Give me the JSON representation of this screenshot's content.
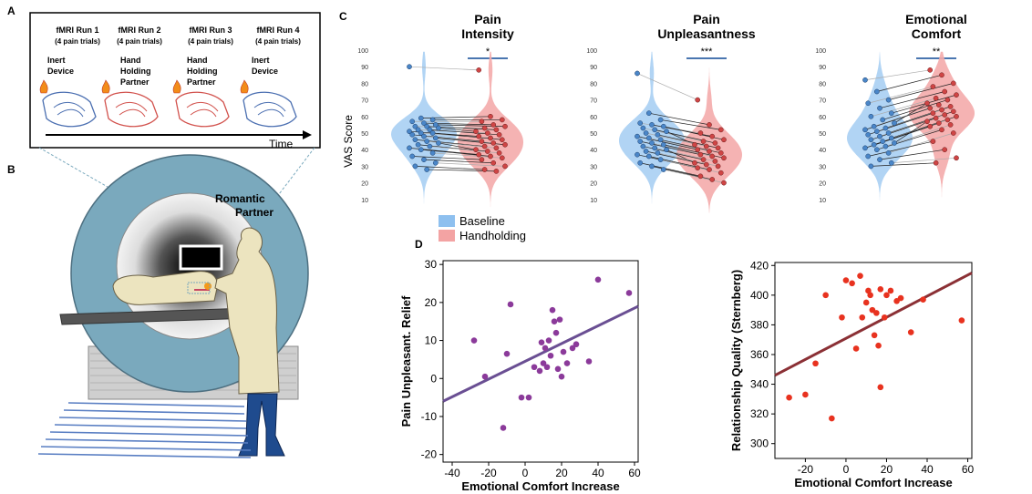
{
  "panel_a": {
    "letter": "A",
    "runs": [
      {
        "title": "fMRI Run 1",
        "sub": "(4 pain trials)",
        "cond": [
          "Inert",
          "Device"
        ]
      },
      {
        "title": "fMRI Run 2",
        "sub": "(4 pain trials)",
        "cond": [
          "Hand",
          "Holding",
          "Partner"
        ]
      },
      {
        "title": "fMRI Run 3",
        "sub": "(4 pain trials)",
        "cond": [
          "Hand",
          "Holding",
          "Partner"
        ]
      },
      {
        "title": "fMRI Run 4",
        "sub": "(4 pain trials)",
        "cond": [
          "Inert",
          "Device"
        ]
      }
    ],
    "time_label": "Time"
  },
  "panel_b": {
    "letter": "B",
    "partner_label": [
      "Romantic",
      "Partner"
    ]
  },
  "panel_c": {
    "letter": "C",
    "ylabel": "VAS Score",
    "legend": [
      {
        "label": "Baseline",
        "color": "#8ec0ef"
      },
      {
        "label": "Handholding",
        "color": "#f3a3a3"
      }
    ]
  },
  "panel_d": {
    "letter": "D"
  },
  "colors": {
    "baseline_fill": "#a9cff3",
    "baseline_dot": "#4a86c8",
    "handhold_fill": "#f4abab",
    "handhold_dot": "#cf4545",
    "purple_dot": "#8b3a9a",
    "red_dot": "#e8321f",
    "scanner": "#7aa9bd"
  },
  "chart_data": [
    {
      "type": "violin",
      "title": [
        "Pain",
        "Intensity"
      ],
      "significance": "*",
      "ylabel": "VAS Score",
      "yticks": [
        10,
        20,
        30,
        40,
        50,
        60,
        70,
        80,
        90,
        100
      ],
      "ylim": [
        0,
        100
      ],
      "series": [
        {
          "name": "Baseline",
          "values": [
            90,
            59,
            58,
            57,
            56,
            55,
            54,
            54,
            53,
            52,
            52,
            51,
            50,
            50,
            49,
            48,
            47,
            46,
            45,
            44,
            43,
            42,
            41,
            40,
            38,
            36,
            34,
            32,
            30,
            28
          ]
        },
        {
          "name": "Handholding",
          "values": [
            88,
            60,
            58,
            57,
            55,
            54,
            53,
            52,
            51,
            50,
            49,
            48,
            47,
            46,
            45,
            44,
            43,
            42,
            41,
            40,
            39,
            38,
            37,
            36,
            35,
            34,
            32,
            30,
            28,
            27
          ]
        }
      ]
    },
    {
      "type": "violin",
      "title": [
        "Pain",
        "Unpleasantness"
      ],
      "significance": "***",
      "ylabel": "",
      "yticks": [
        10,
        20,
        30,
        40,
        50,
        60,
        70,
        80,
        90,
        100
      ],
      "ylim": [
        0,
        100
      ],
      "series": [
        {
          "name": "Baseline",
          "values": [
            86,
            62,
            58,
            56,
            55,
            54,
            53,
            52,
            51,
            50,
            49,
            48,
            47,
            46,
            45,
            44,
            43,
            42,
            41,
            40,
            39,
            38,
            37,
            36,
            34,
            32,
            30,
            28
          ]
        },
        {
          "name": "Handholding",
          "values": [
            70,
            55,
            52,
            50,
            48,
            46,
            45,
            44,
            43,
            42,
            41,
            40,
            39,
            38,
            37,
            36,
            35,
            34,
            33,
            32,
            31,
            30,
            29,
            28,
            26,
            24,
            22,
            20
          ]
        }
      ]
    },
    {
      "type": "violin",
      "title": [
        "Emotional",
        "Comfort"
      ],
      "significance": "**",
      "ylabel": "",
      "yticks": [
        10,
        20,
        30,
        40,
        50,
        60,
        70,
        80,
        90,
        100
      ],
      "ylim": [
        0,
        100
      ],
      "series": [
        {
          "name": "Baseline",
          "values": [
            82,
            75,
            70,
            68,
            65,
            62,
            60,
            58,
            56,
            54,
            53,
            52,
            51,
            50,
            49,
            48,
            47,
            46,
            45,
            44,
            43,
            42,
            41,
            40,
            38,
            36,
            34,
            32,
            30
          ]
        },
        {
          "name": "Handholding",
          "values": [
            88,
            85,
            80,
            78,
            75,
            73,
            71,
            70,
            68,
            67,
            66,
            65,
            64,
            63,
            62,
            61,
            60,
            59,
            58,
            57,
            56,
            55,
            54,
            52,
            50,
            45,
            40,
            35,
            32
          ]
        }
      ]
    },
    {
      "type": "scatter",
      "xlabel": "Emotional Comfort Increase",
      "ylabel": "Pain Unpleasant. Relief",
      "xlim": [
        -45,
        62
      ],
      "ylim": [
        -22,
        31
      ],
      "xticks": [
        -40,
        -20,
        0,
        20,
        40,
        60
      ],
      "yticks": [
        -20,
        -10,
        0,
        10,
        20,
        30
      ],
      "fit": {
        "x": [
          -45,
          62
        ],
        "y": [
          -6,
          19
        ]
      },
      "points": [
        {
          "x": -28,
          "y": 10
        },
        {
          "x": -22,
          "y": 0.5
        },
        {
          "x": -12,
          "y": -13
        },
        {
          "x": -8,
          "y": 19.5
        },
        {
          "x": -10,
          "y": 6.5
        },
        {
          "x": -2,
          "y": -5
        },
        {
          "x": 2,
          "y": -5
        },
        {
          "x": 5,
          "y": 3
        },
        {
          "x": 8,
          "y": 2
        },
        {
          "x": 9,
          "y": 9.5
        },
        {
          "x": 10,
          "y": 4
        },
        {
          "x": 11,
          "y": 8
        },
        {
          "x": 12,
          "y": 3
        },
        {
          "x": 13,
          "y": 10
        },
        {
          "x": 14,
          "y": 6
        },
        {
          "x": 15,
          "y": 18
        },
        {
          "x": 16,
          "y": 15
        },
        {
          "x": 17,
          "y": 12
        },
        {
          "x": 18,
          "y": 2.5
        },
        {
          "x": 19,
          "y": 15.5
        },
        {
          "x": 20,
          "y": 0.5
        },
        {
          "x": 21,
          "y": 7
        },
        {
          "x": 23,
          "y": 4
        },
        {
          "x": 26,
          "y": 8
        },
        {
          "x": 28,
          "y": 9
        },
        {
          "x": 35,
          "y": 4.5
        },
        {
          "x": 40,
          "y": 26
        },
        {
          "x": 57,
          "y": 22.5
        }
      ]
    },
    {
      "type": "scatter",
      "xlabel": "Emotional Comfort Increase",
      "ylabel": "Relationship Quality (Sternberg)",
      "xlim": [
        -35,
        62
      ],
      "ylim": [
        290,
        422
      ],
      "xticks": [
        -20,
        0,
        20,
        40,
        60
      ],
      "yticks": [
        300,
        320,
        340,
        360,
        380,
        400,
        420
      ],
      "fit": {
        "x": [
          -35,
          62
        ],
        "y": [
          346,
          415
        ]
      },
      "points": [
        {
          "x": -28,
          "y": 331
        },
        {
          "x": -20,
          "y": 333
        },
        {
          "x": -15,
          "y": 354
        },
        {
          "x": -10,
          "y": 400
        },
        {
          "x": -7,
          "y": 317
        },
        {
          "x": -2,
          "y": 385
        },
        {
          "x": 0,
          "y": 410
        },
        {
          "x": 3,
          "y": 408
        },
        {
          "x": 5,
          "y": 364
        },
        {
          "x": 7,
          "y": 413
        },
        {
          "x": 8,
          "y": 385
        },
        {
          "x": 10,
          "y": 395
        },
        {
          "x": 11,
          "y": 403
        },
        {
          "x": 12,
          "y": 400
        },
        {
          "x": 13,
          "y": 390
        },
        {
          "x": 14,
          "y": 373
        },
        {
          "x": 15,
          "y": 388
        },
        {
          "x": 16,
          "y": 366
        },
        {
          "x": 17,
          "y": 404
        },
        {
          "x": 17,
          "y": 338
        },
        {
          "x": 19,
          "y": 385
        },
        {
          "x": 20,
          "y": 400
        },
        {
          "x": 22,
          "y": 403
        },
        {
          "x": 25,
          "y": 396
        },
        {
          "x": 27,
          "y": 398
        },
        {
          "x": 32,
          "y": 375
        },
        {
          "x": 38,
          "y": 397
        },
        {
          "x": 57,
          "y": 383
        }
      ]
    }
  ]
}
